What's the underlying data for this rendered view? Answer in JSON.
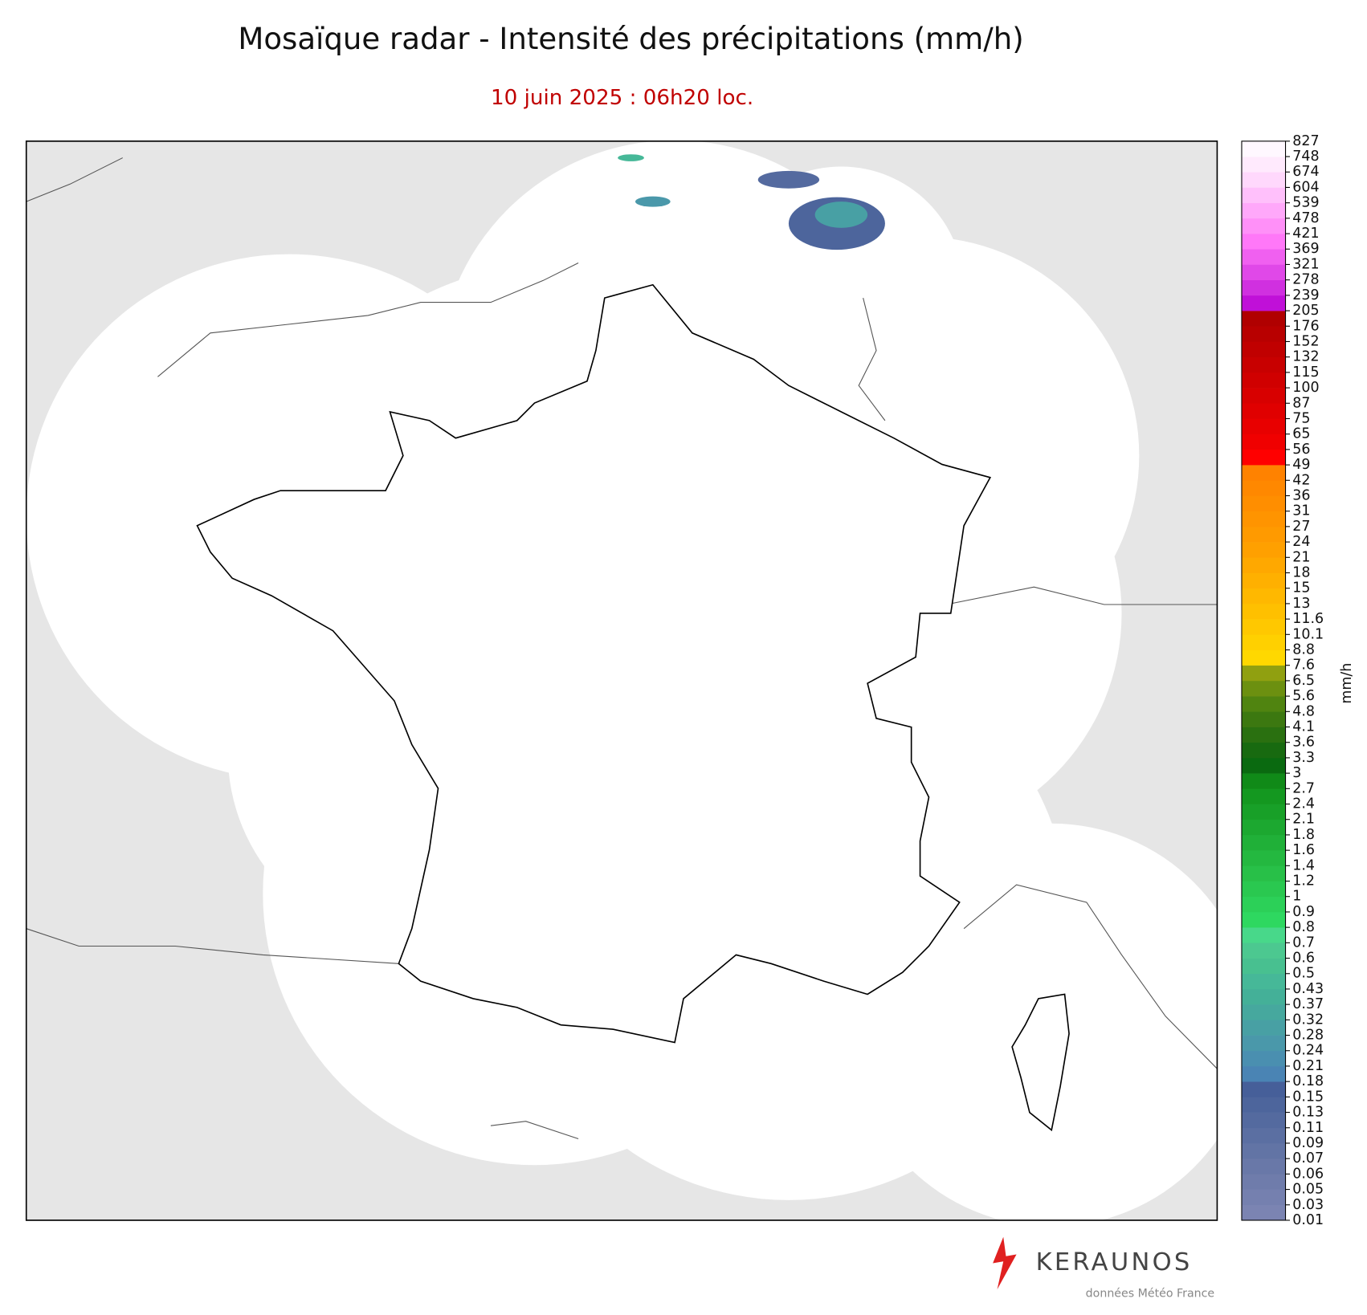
{
  "chart_data": {
    "type": "map",
    "title": "Mosaïque radar - Intensité des précipitations (mm/h)",
    "subtitle": "10 juin 2025 : 06h20 loc.",
    "colorbar": {
      "label": "mm/h",
      "ticks": [
        0.01,
        0.03,
        0.05,
        0.06,
        0.07,
        0.09,
        0.11,
        0.13,
        0.15,
        0.18,
        0.21,
        0.24,
        0.28,
        0.32,
        0.37,
        0.43,
        0.5,
        0.6,
        0.7,
        0.8,
        0.9,
        1,
        1.2,
        1.4,
        1.6,
        1.8,
        2.1,
        2.4,
        2.7,
        3,
        3.3,
        3.6,
        4.1,
        4.8,
        5.6,
        6.5,
        7.6,
        8.8,
        10.1,
        11.6,
        13,
        15,
        18,
        21,
        24,
        27,
        31,
        36,
        42,
        49,
        56,
        65,
        75,
        87,
        100,
        115,
        132,
        152,
        176,
        205,
        239,
        278,
        321,
        369,
        421,
        478,
        539,
        604,
        674,
        748,
        827
      ],
      "colors": [
        "#7b84b2",
        "#7580af",
        "#6f7cab",
        "#6978a8",
        "#6274a5",
        "#5b6fa2",
        "#546a9f",
        "#4d659c",
        "#465f99",
        "#4a84b4",
        "#4a8fb0",
        "#4a98aa",
        "#48a0a4",
        "#46a89e",
        "#44b098",
        "#46b898",
        "#48c090",
        "#4cc890",
        "#48d88a",
        "#2ed860",
        "#2cd058",
        "#2ac850",
        "#28c048",
        "#24b840",
        "#20b038",
        "#1ca830",
        "#18a028",
        "#149820",
        "#108a18",
        "#0a6a10",
        "#186a10",
        "#2a7010",
        "#3c7810",
        "#508410",
        "#6c9010",
        "#90a010",
        "#ffd800",
        "#ffd000",
        "#ffc800",
        "#ffc000",
        "#ffb800",
        "#ffb000",
        "#ffa800",
        "#ffa000",
        "#ff9a00",
        "#ff9400",
        "#ff8e00",
        "#ff8800",
        "#ff8200",
        "#ff0000",
        "#f00000",
        "#e80000",
        "#e00000",
        "#d80000",
        "#d00000",
        "#c80000",
        "#c00000",
        "#b80000",
        "#b00000",
        "#c010d8",
        "#d030e0",
        "#e048e8",
        "#f060f0",
        "#ff78f8",
        "#ff90f8",
        "#ffa8fa",
        "#ffc0fb",
        "#ffd8fc",
        "#ffeafd",
        "#fff8ff"
      ]
    }
  },
  "footer": {
    "logo": "KERAUNOS",
    "credit": "données Météo France"
  }
}
